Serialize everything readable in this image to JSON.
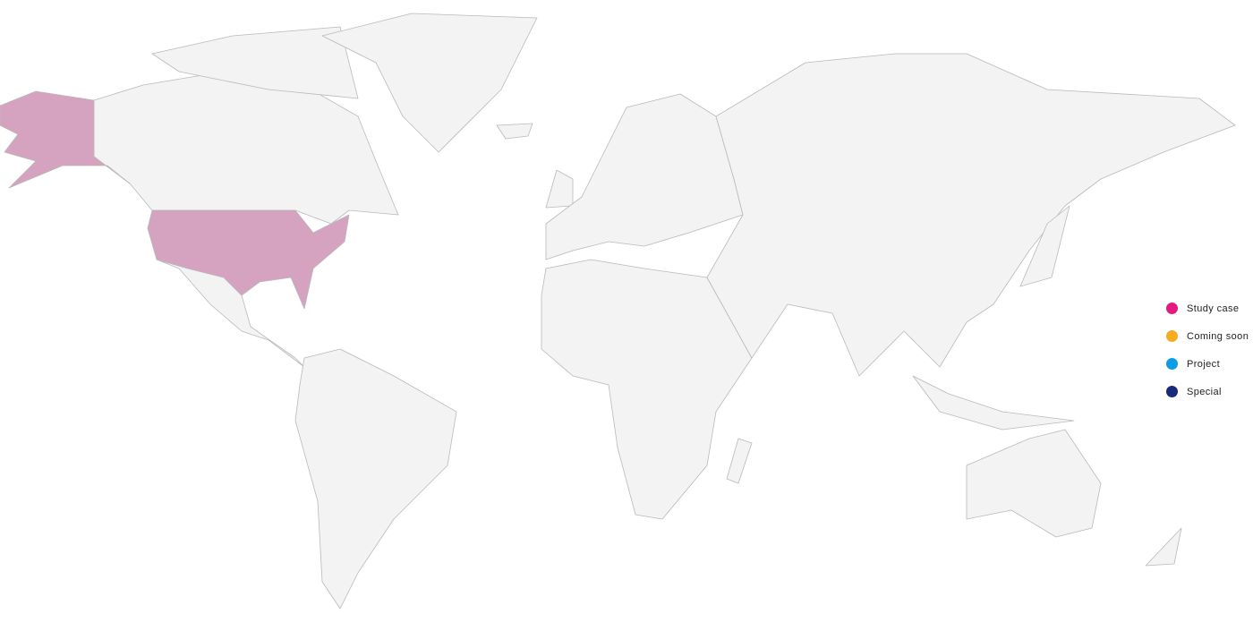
{
  "map": {
    "land_color": "#f3f3f3",
    "border_color": "#b9b9b9",
    "highlight_color": "#d5a3bf"
  },
  "legend": {
    "items": [
      {
        "label": "Study case",
        "color": "#e6197f"
      },
      {
        "label": "Coming soon",
        "color": "#f5ad1f"
      },
      {
        "label": "Project",
        "color": "#0a9de6"
      },
      {
        "label": "Special",
        "color": "#1a2a7a"
      }
    ]
  }
}
